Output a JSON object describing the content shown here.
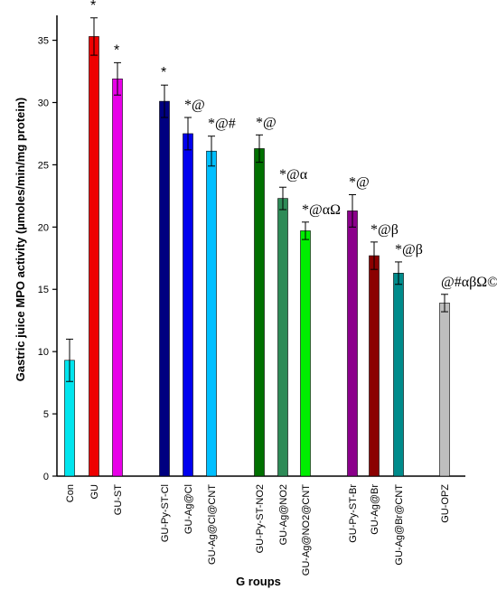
{
  "chart_data": {
    "type": "bar",
    "xlabel": "G roups",
    "ylabel": "Gastric juice MPO activity (µmoles/min/mg protein)",
    "ylim": [
      0,
      37
    ],
    "yticks": [
      0,
      5,
      10,
      15,
      20,
      25,
      30,
      35
    ],
    "grid": false,
    "categories": [
      "Con",
      "GU",
      "GU-ST",
      "GU-Py-ST-Cl",
      "GU-Ag@Cl",
      "GU-Ag@Cl@CNT",
      "GU-Py-ST-NO2",
      "GU-Ag@NO2",
      "GU-Ag@NO2@CNT",
      "GU-Py-ST-Br",
      "GU-Ag@Br",
      "GU-Ag@Br@CNT",
      "GU-OPZ"
    ],
    "values": [
      9.3,
      35.3,
      31.9,
      30.1,
      27.5,
      26.1,
      26.3,
      22.3,
      19.7,
      21.3,
      17.7,
      16.3,
      13.9
    ],
    "errors": [
      1.7,
      1.5,
      1.3,
      1.3,
      1.3,
      1.2,
      1.1,
      0.9,
      0.7,
      1.3,
      1.1,
      0.9,
      0.7
    ],
    "colors": [
      "#00e5ee",
      "#ee0000",
      "#e800e8",
      "#000080",
      "#0000ee",
      "#00bfff",
      "#007000",
      "#2e8b57",
      "#00ee00",
      "#8b008b",
      "#8b0000",
      "#008b8b",
      "#bebebe"
    ],
    "annotations": [
      "",
      "*",
      "*",
      "*",
      "*@",
      "*@#",
      "*@",
      "*@α",
      "*@αΩ",
      "*@",
      "*@β",
      "*@β",
      "@#αβΩ©"
    ]
  }
}
